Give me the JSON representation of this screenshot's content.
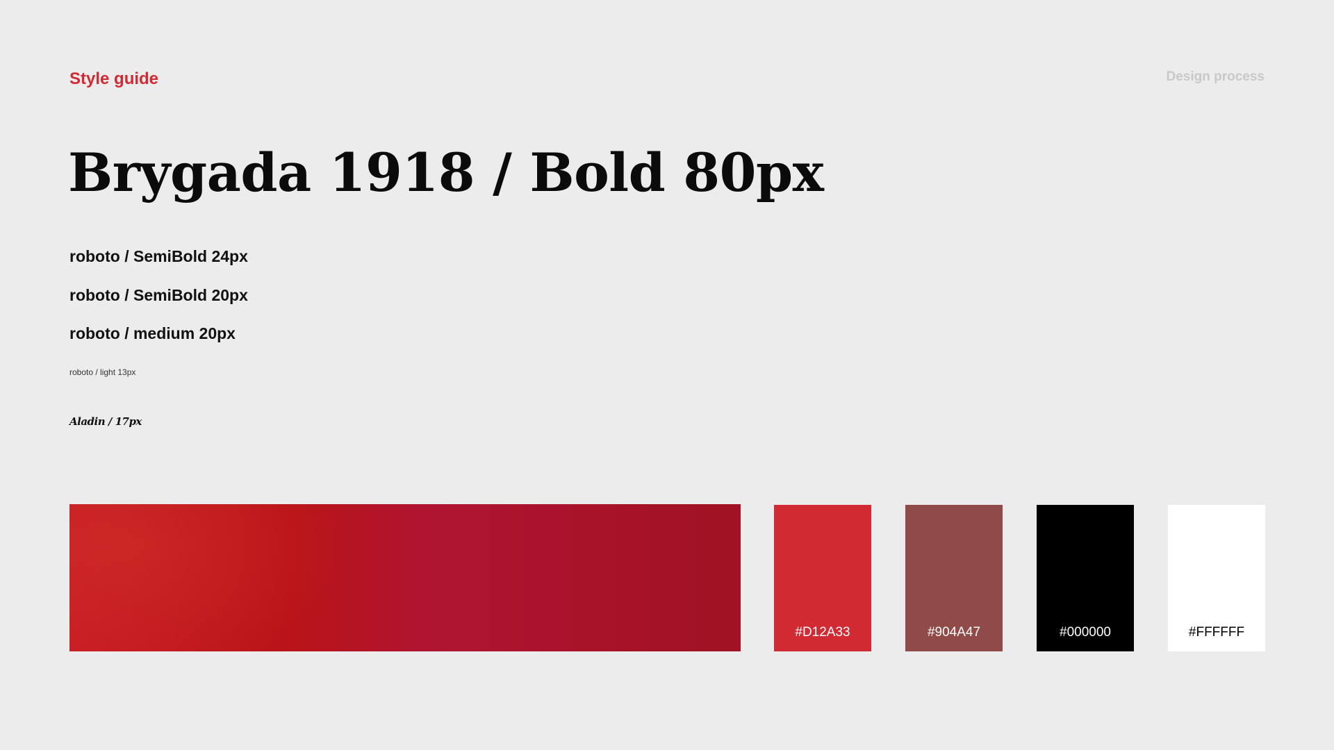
{
  "header": {
    "title": "Style guide",
    "nav_link": "Design process"
  },
  "typography": {
    "display": "Brygada 1918 / Bold 80px",
    "samples": [
      "roboto / SemiBold 24px",
      "roboto / SemiBold 20px",
      "roboto / medium 20px",
      "roboto / light 13px",
      "Aladin / 17px"
    ]
  },
  "colors": {
    "accent": "#D12A33",
    "gradient": {
      "stops": [
        "#C81C25",
        "#B81318",
        "#B01430",
        "#A01224"
      ]
    },
    "swatches": [
      {
        "hex": "#D12A33",
        "label": "#D12A33",
        "text_color": "#FFFFFF"
      },
      {
        "hex": "#904A47",
        "label": "#904A47",
        "text_color": "#FFFFFF"
      },
      {
        "hex": "#000000",
        "label": "#000000",
        "text_color": "#FFFFFF"
      },
      {
        "hex": "#FFFFFF",
        "label": "#FFFFFF",
        "text_color": "#000000"
      }
    ]
  }
}
